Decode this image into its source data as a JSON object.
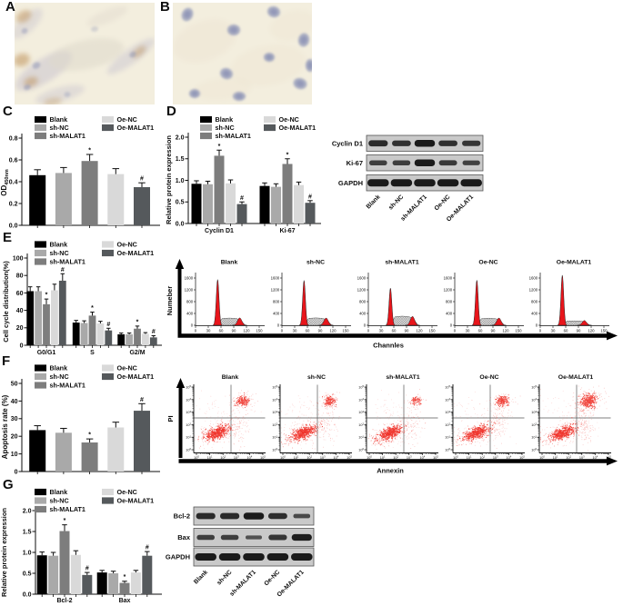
{
  "figure": {
    "panels": {
      "a": "A",
      "b": "B",
      "c": "C",
      "d": "D",
      "e": "E",
      "f": "F",
      "g": "G"
    }
  },
  "groups": [
    {
      "name": "Blank",
      "color": "#000000"
    },
    {
      "name": "sh-NC",
      "color": "#a9a9a9"
    },
    {
      "name": "sh-MALAT1",
      "color": "#7d7d7d"
    },
    {
      "name": "Oe-NC",
      "color": "#d9d9d9"
    },
    {
      "name": "Oe-MALAT1",
      "color": "#55595c"
    }
  ],
  "chart_data": [
    {
      "id": "C",
      "type": "bar",
      "ylabel": "OD",
      "ylabel_sub": "450nm",
      "ylim": [
        0,
        0.8
      ],
      "yticks": [
        0,
        0.2,
        0.4,
        0.6,
        0.8
      ],
      "categories": [
        ""
      ],
      "series": [
        {
          "name": "Blank",
          "values": [
            0.46
          ],
          "errors": [
            0.05
          ],
          "ann": [
            ""
          ]
        },
        {
          "name": "sh-NC",
          "values": [
            0.48
          ],
          "errors": [
            0.05
          ],
          "ann": [
            ""
          ]
        },
        {
          "name": "sh-MALAT1",
          "values": [
            0.59
          ],
          "errors": [
            0.06
          ],
          "ann": [
            "*"
          ]
        },
        {
          "name": "Oe-NC",
          "values": [
            0.47
          ],
          "errors": [
            0.05
          ],
          "ann": [
            ""
          ]
        },
        {
          "name": "Oe-MALAT1",
          "values": [
            0.35
          ],
          "errors": [
            0.04
          ],
          "ann": [
            "#"
          ]
        }
      ]
    },
    {
      "id": "D",
      "type": "bar",
      "ylabel": "Relative protein expression",
      "ylim": [
        0,
        2
      ],
      "yticks": [
        0,
        0.5,
        1,
        1.5,
        2
      ],
      "categories": [
        "Cyclin D1",
        "Ki-67"
      ],
      "series": [
        {
          "name": "Blank",
          "values": [
            0.92,
            0.87
          ],
          "errors": [
            0.07,
            0.07
          ],
          "ann": [
            "",
            ""
          ]
        },
        {
          "name": "sh-NC",
          "values": [
            0.91,
            0.85
          ],
          "errors": [
            0.07,
            0.07
          ],
          "ann": [
            "",
            ""
          ]
        },
        {
          "name": "sh-MALAT1",
          "values": [
            1.57,
            1.38
          ],
          "errors": [
            0.13,
            0.12
          ],
          "ann": [
            "*",
            "*"
          ]
        },
        {
          "name": "Oe-NC",
          "values": [
            0.93,
            0.89
          ],
          "errors": [
            0.08,
            0.07
          ],
          "ann": [
            "",
            ""
          ]
        },
        {
          "name": "Oe-MALAT1",
          "values": [
            0.45,
            0.48
          ],
          "errors": [
            0.05,
            0.05
          ],
          "ann": [
            "#",
            "#"
          ]
        }
      ]
    },
    {
      "id": "E",
      "type": "bar",
      "ylabel": "Cell cycle distribution(%)",
      "ylim": [
        0,
        100
      ],
      "yticks": [
        0,
        20,
        40,
        60,
        80,
        100
      ],
      "categories": [
        "G0/G1",
        "S",
        "G2/M"
      ],
      "series": [
        {
          "name": "Blank",
          "values": [
            62,
            26,
            12.5
          ],
          "errors": [
            5,
            2.5,
            1.5
          ],
          "ann": [
            "",
            "",
            ""
          ]
        },
        {
          "name": "sh-NC",
          "values": [
            62,
            25.5,
            12.5
          ],
          "errors": [
            5,
            2.5,
            1.5
          ],
          "ann": [
            "",
            "",
            ""
          ]
        },
        {
          "name": "sh-MALAT1",
          "values": [
            47,
            34,
            19
          ],
          "errors": [
            6,
            4,
            3
          ],
          "ann": [
            "*",
            "*",
            "*"
          ]
        },
        {
          "name": "Oe-NC",
          "values": [
            63,
            25,
            13
          ],
          "errors": [
            7,
            2.5,
            1.5
          ],
          "ann": [
            "",
            "",
            ""
          ]
        },
        {
          "name": "Oe-MALAT1",
          "values": [
            74,
            17,
            9
          ],
          "errors": [
            8,
            2.5,
            2
          ],
          "ann": [
            "#",
            "#",
            "#"
          ]
        }
      ]
    },
    {
      "id": "F",
      "type": "bar",
      "ylabel": "Apoptosis rate (%)",
      "ylim": [
        0,
        50
      ],
      "yticks": [
        0,
        10,
        20,
        30,
        40,
        50
      ],
      "categories": [
        ""
      ],
      "series": [
        {
          "name": "Blank",
          "values": [
            23.5
          ],
          "errors": [
            2.5
          ],
          "ann": [
            ""
          ]
        },
        {
          "name": "sh-NC",
          "values": [
            22
          ],
          "errors": [
            2.5
          ],
          "ann": [
            ""
          ]
        },
        {
          "name": "sh-MALAT1",
          "values": [
            16.5
          ],
          "errors": [
            2
          ],
          "ann": [
            "*"
          ]
        },
        {
          "name": "Oe-NC",
          "values": [
            25
          ],
          "errors": [
            3
          ],
          "ann": [
            ""
          ]
        },
        {
          "name": "Oe-MALAT1",
          "values": [
            34.5
          ],
          "errors": [
            4
          ],
          "ann": [
            "#"
          ]
        }
      ]
    },
    {
      "id": "G",
      "type": "bar",
      "ylabel": "Relative protein expression",
      "ylim": [
        0,
        2
      ],
      "yticks": [
        0,
        0.5,
        1,
        1.5,
        2
      ],
      "categories": [
        "Bcl-2",
        "Bax"
      ],
      "series": [
        {
          "name": "Blank",
          "values": [
            0.93,
            0.52
          ],
          "errors": [
            0.08,
            0.05
          ],
          "ann": [
            "",
            ""
          ]
        },
        {
          "name": "sh-NC",
          "values": [
            0.92,
            0.5
          ],
          "errors": [
            0.08,
            0.05
          ],
          "ann": [
            "",
            ""
          ]
        },
        {
          "name": "sh-MALAT1",
          "values": [
            1.51,
            0.27
          ],
          "errors": [
            0.15,
            0.04
          ],
          "ann": [
            "*",
            "*"
          ]
        },
        {
          "name": "Oe-NC",
          "values": [
            0.94,
            0.52
          ],
          "errors": [
            0.1,
            0.05
          ],
          "ann": [
            "",
            ""
          ]
        },
        {
          "name": "Oe-MALAT1",
          "values": [
            0.46,
            0.92
          ],
          "errors": [
            0.06,
            0.1
          ],
          "ann": [
            "#",
            "#"
          ]
        }
      ]
    }
  ],
  "blots": [
    {
      "id": "D",
      "rows": [
        {
          "label": "Cyclin D1",
          "bands": [
            0.8,
            0.72,
            1.0,
            0.72,
            0.65
          ]
        },
        {
          "label": "Ki-67",
          "bands": [
            0.55,
            0.55,
            1.0,
            0.6,
            0.5
          ]
        },
        {
          "label": "GAPDH",
          "bands": [
            1,
            1,
            1,
            1,
            1
          ]
        }
      ],
      "lanes": [
        "Blank",
        "sh-NC",
        "sh-MALAT1",
        "Oe-NC",
        "Oe-MALAT1"
      ]
    },
    {
      "id": "G",
      "rows": [
        {
          "label": "Bcl-2",
          "bands": [
            0.8,
            0.8,
            1.0,
            0.75,
            0.4
          ]
        },
        {
          "label": "Bax",
          "bands": [
            0.55,
            0.55,
            0.3,
            0.65,
            0.95
          ]
        },
        {
          "label": "GAPDH",
          "bands": [
            1,
            1,
            1,
            1,
            1
          ]
        }
      ],
      "lanes": [
        "Blank",
        "sh-NC",
        "sh-MALAT1",
        "Oe-NC",
        "Oe-MALAT1"
      ]
    }
  ],
  "flow_cycle": {
    "ylabel": "Numeber",
    "xlabel": "Channles",
    "yticks": [
      0,
      400,
      800,
      1200,
      1600
    ],
    "xticks": [
      0,
      30,
      60,
      90,
      120,
      150
    ],
    "panels": [
      {
        "title": "Blank",
        "g1": 1550,
        "s": 230,
        "g2": 250
      },
      {
        "title": "sh-NC",
        "g1": 1520,
        "s": 235,
        "g2": 245
      },
      {
        "title": "sh-MALAT1",
        "g1": 1260,
        "s": 290,
        "g2": 300
      },
      {
        "title": "Oe-NC",
        "g1": 1530,
        "s": 225,
        "g2": 245
      },
      {
        "title": "Oe-MALAT1",
        "g1": 1700,
        "s": 140,
        "g2": 160
      }
    ]
  },
  "flow_apoptosis": {
    "ylabel": "PI",
    "xlabel": "Annexin",
    "tick_exponents": [
      0,
      1,
      2,
      3,
      4,
      5
    ],
    "panels": [
      {
        "title": "Blank",
        "ur_cells": 120
      },
      {
        "title": "sh-NC",
        "ur_cells": 105
      },
      {
        "title": "sh-MALAT1",
        "ur_cells": 55
      },
      {
        "title": "Oe-NC",
        "ur_cells": 125
      },
      {
        "title": "Oe-MALAT1",
        "ur_cells": 240
      }
    ]
  },
  "micrographs": {
    "a": {
      "bg": "#f3eede",
      "cell": "#c5c0ce",
      "stain": "#bd9159",
      "nucleus": "#8d94b6"
    },
    "b": {
      "bg": "#f3eede",
      "cell": "#eee3d2",
      "stain": "#ece0cd",
      "nucleus": "#9097b8"
    }
  }
}
